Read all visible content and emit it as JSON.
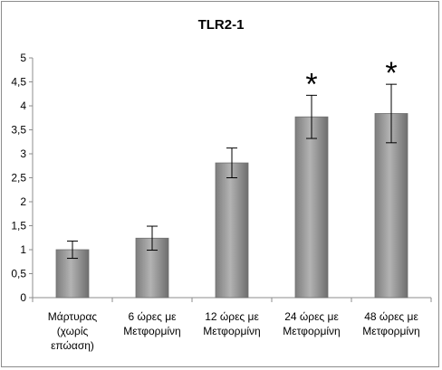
{
  "chart_data": {
    "type": "bar",
    "title": "TLR2-1",
    "xlabel": "",
    "ylabel": "",
    "ylim": [
      0,
      5
    ],
    "yticks": [
      "0",
      "0,5",
      "1",
      "1,5",
      "2",
      "2,5",
      "3",
      "3,5",
      "4",
      "4,5",
      "5"
    ],
    "grid": false,
    "legend": "none",
    "categories": [
      [
        "Μάρτυρας",
        "(χωρίς",
        "επώαση)"
      ],
      [
        "6 ώρες με",
        "Μετφορμίνη"
      ],
      [
        "12 ώρες με",
        "Μετφορμίνη"
      ],
      [
        "24 ώρες με",
        "Μετφορμίνη"
      ],
      [
        "48 ώρες με",
        "Μετφορμίνη"
      ]
    ],
    "values": [
      1.0,
      1.24,
      2.81,
      3.77,
      3.84
    ],
    "error": [
      0.18,
      0.25,
      0.31,
      0.45,
      0.61
    ],
    "annotations": [
      "",
      "",
      "",
      "*",
      "*"
    ],
    "colors": {
      "bar": "#9a9a9a",
      "bar_edge": "#707070"
    }
  }
}
